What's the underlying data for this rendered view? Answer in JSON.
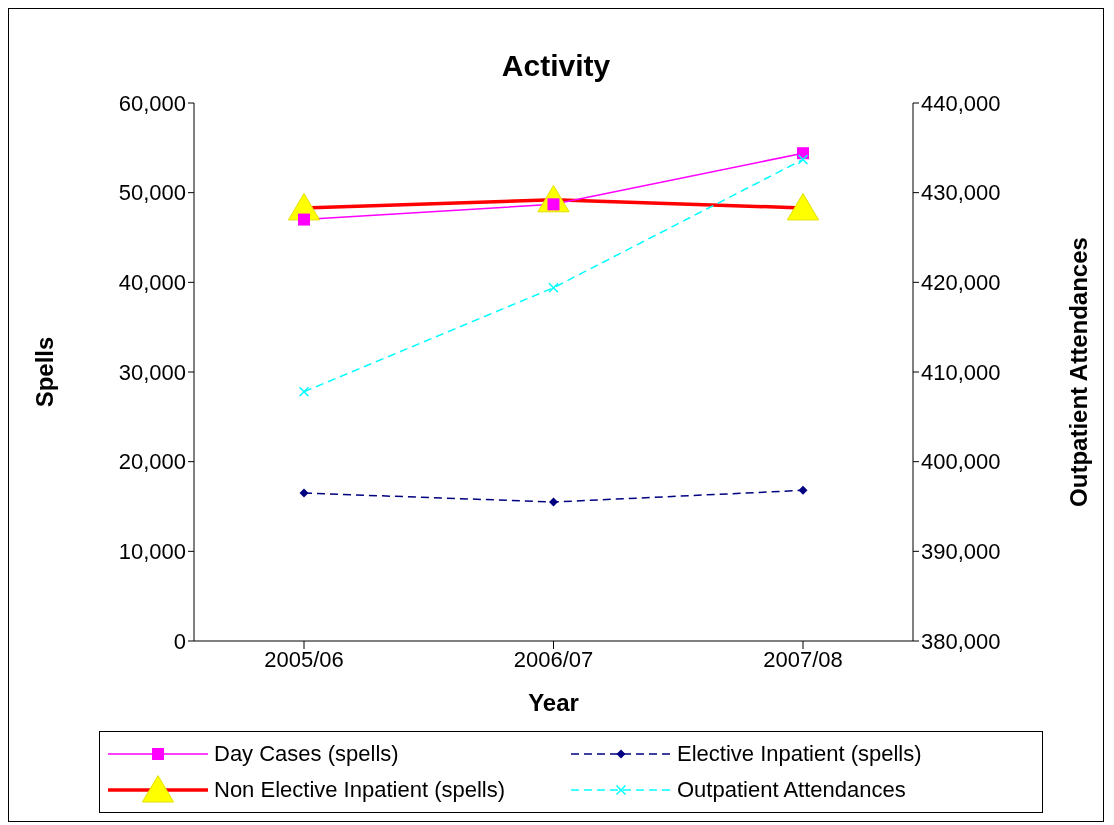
{
  "chart_data": {
    "type": "line",
    "title": "Activity",
    "xlabel": "Year",
    "ylabel": "Spells",
    "y2label": "Outpatient Attendances",
    "categories": [
      "2005/06",
      "2006/07",
      "2007/08"
    ],
    "ylim": [
      0,
      60000
    ],
    "yticks": [
      {
        "value": 0,
        "label": "0"
      },
      {
        "value": 10000,
        "label": "10,000"
      },
      {
        "value": 20000,
        "label": "20,000"
      },
      {
        "value": 30000,
        "label": "30,000"
      },
      {
        "value": 40000,
        "label": "40,000"
      },
      {
        "value": 50000,
        "label": "50,000"
      },
      {
        "value": 60000,
        "label": "60,000"
      }
    ],
    "y2lim": [
      380000,
      440000
    ],
    "y2ticks": [
      {
        "value": 380000,
        "label": "380,000"
      },
      {
        "value": 390000,
        "label": "390,000"
      },
      {
        "value": 400000,
        "label": "400,000"
      },
      {
        "value": 410000,
        "label": "410,000"
      },
      {
        "value": 420000,
        "label": "420,000"
      },
      {
        "value": 430000,
        "label": "430,000"
      },
      {
        "value": 440000,
        "label": "440,000"
      }
    ],
    "grid": false,
    "legend": "bottom",
    "series": [
      {
        "name": "Day Cases (spells)",
        "color": "#ff00ff",
        "values": [
          47000,
          48700,
          54400
        ],
        "marker": "square",
        "line_style": "solid"
      },
      {
        "name": "Elective Inpatient (spells)",
        "color": "#000080",
        "values": [
          16500,
          15500,
          16800
        ],
        "marker": "diamond",
        "line_style": "dashed"
      },
      {
        "name": "Non Elective Inpatient (spells)",
        "color": "#ff0000",
        "values": [
          48300,
          49200,
          48300
        ],
        "marker": "triangle",
        "line_style": "solid"
      },
      {
        "name": "Outpatient Attendances",
        "color": "#00ffff",
        "values": [
          407800,
          419400,
          433700
        ],
        "marker": "cross",
        "line_style": "dashed",
        "axis": "y2"
      }
    ]
  }
}
